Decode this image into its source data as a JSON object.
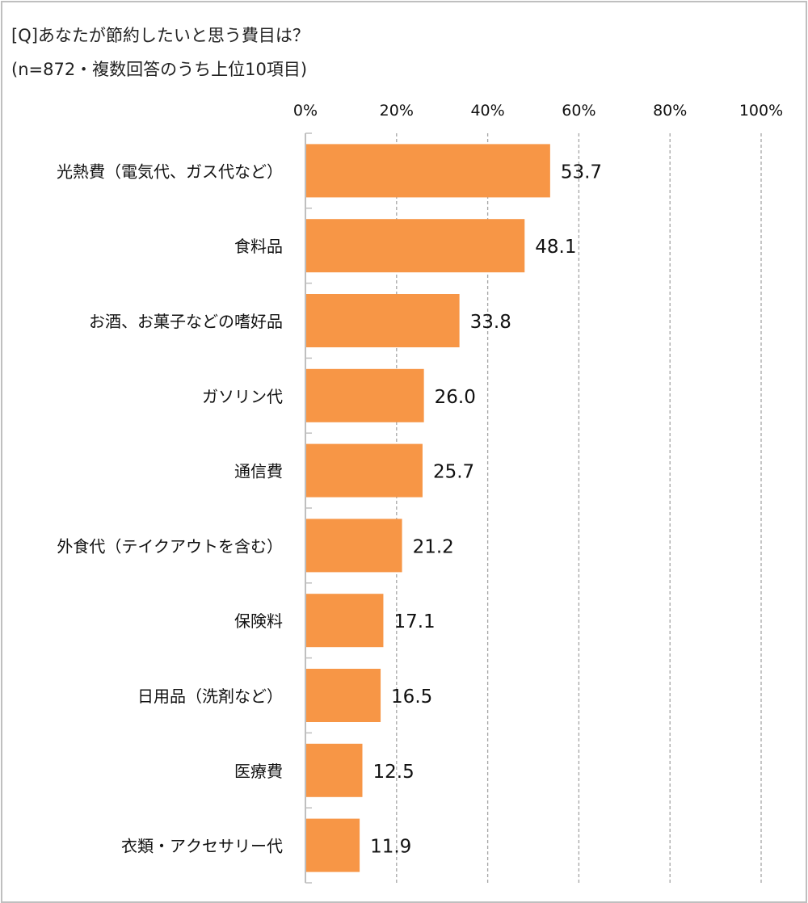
{
  "chart_data": {
    "type": "bar",
    "orientation": "horizontal",
    "title": "[Q]あなたが節約したいと思う費目は？",
    "subtitle": "(n=872・複数回答のうち上位10項目)",
    "categories": [
      "光熱費（電気代、ガス代など）",
      "食料品",
      "お酒、お菓子などの嗜好品",
      "ガソリン代",
      "通信費",
      "外食代（テイクアウトを含む）",
      "保険料",
      "日用品（洗剤など）",
      "医療費",
      "衣類・アクセサリー代"
    ],
    "values": [
      53.7,
      48.1,
      33.8,
      26.0,
      25.7,
      21.2,
      17.1,
      16.5,
      12.5,
      11.9
    ],
    "data_labels": [
      "53.7",
      "48.1",
      "33.8",
      "26.0",
      "25.7",
      "21.2",
      "17.1",
      "16.5",
      "12.5",
      "11.9"
    ],
    "xlim": [
      0,
      100
    ],
    "x_ticks": [
      "0%",
      "20%",
      "40%",
      "60%",
      "80%",
      "100%"
    ],
    "x_tick_values": [
      0,
      20,
      40,
      60,
      80,
      100
    ],
    "axis_position": "top",
    "grid": "vertical dashed",
    "bar_color": "#F79646",
    "xlabel": "",
    "ylabel": ""
  }
}
